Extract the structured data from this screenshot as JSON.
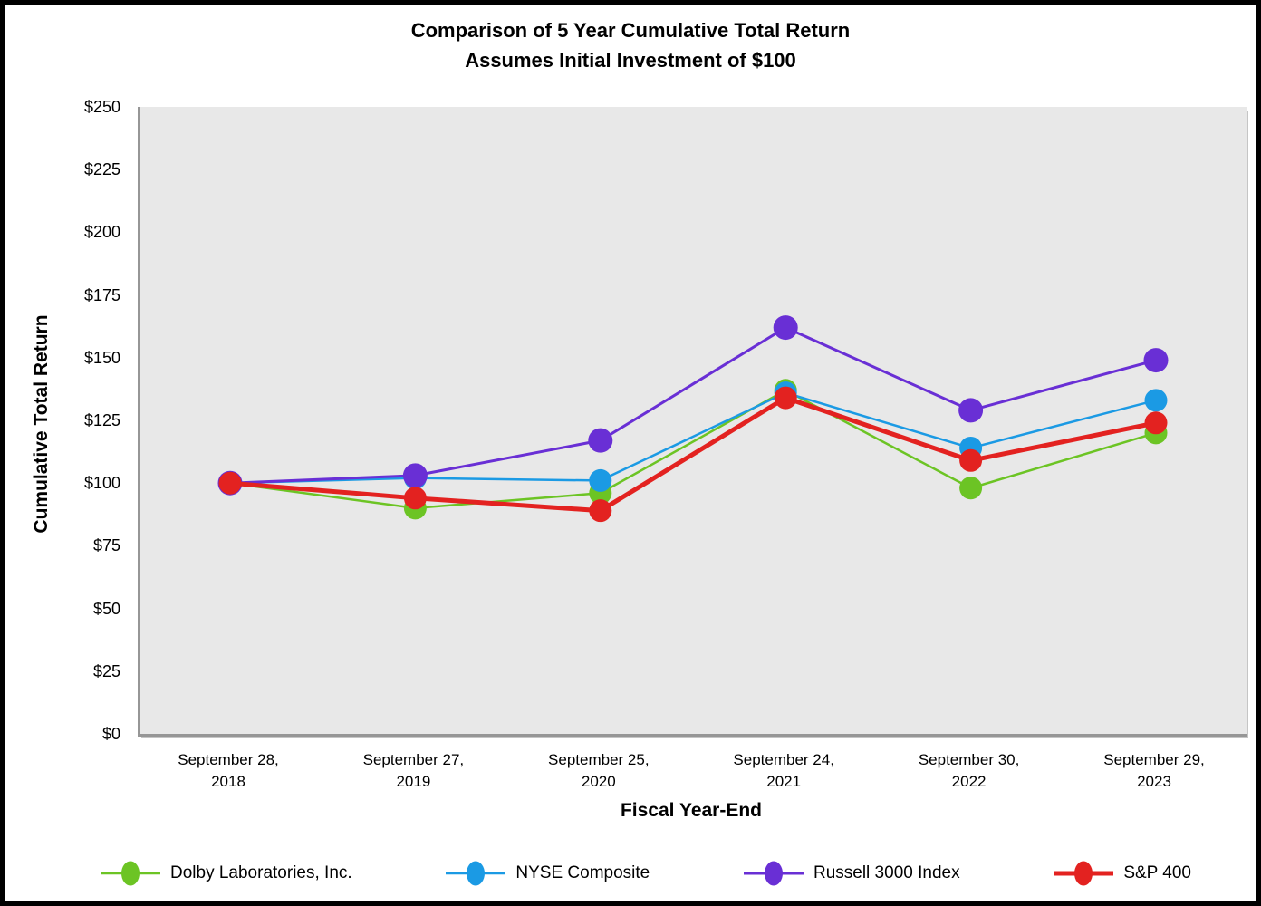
{
  "title": {
    "line1": "Comparison of 5 Year Cumulative Total Return",
    "line2": "Assumes Initial Investment of $100"
  },
  "chart_data": {
    "type": "line",
    "title": "Comparison of 5 Year Cumulative Total Return",
    "subtitle": "Assumes Initial Investment of $100",
    "xlabel": "Fiscal Year-End",
    "ylabel": "Cumulative Total Return",
    "categories": [
      "September 28, 2018",
      "September 27, 2019",
      "September 25, 2020",
      "September 24, 2021",
      "September 30, 2022",
      "September 29, 2023"
    ],
    "series": [
      {
        "name": "Dolby Laboratories, Inc.",
        "color": "#6cc424",
        "line_width": 2.5,
        "marker_radius": 12.5,
        "values": [
          100,
          90,
          96,
          137,
          98,
          120
        ]
      },
      {
        "name": "NYSE Composite",
        "color": "#1b9ae4",
        "line_width": 2.5,
        "marker_radius": 12.5,
        "values": [
          100,
          102,
          101,
          136,
          114,
          133
        ]
      },
      {
        "name": "Russell 3000 Index",
        "color": "#692fd5",
        "line_width": 3,
        "marker_radius": 13.5,
        "values": [
          100,
          103,
          117,
          162,
          129,
          149
        ]
      },
      {
        "name": "S&P 400",
        "color": "#e32220",
        "line_width": 5,
        "marker_radius": 12.5,
        "values": [
          100,
          94,
          89,
          134,
          109,
          124
        ]
      }
    ],
    "ylim": [
      0,
      250
    ],
    "ytick_step": 25,
    "ytick_prefix": "$",
    "grid": false,
    "legend_position": "bottom",
    "plot_bg": "#e8e8e8"
  }
}
